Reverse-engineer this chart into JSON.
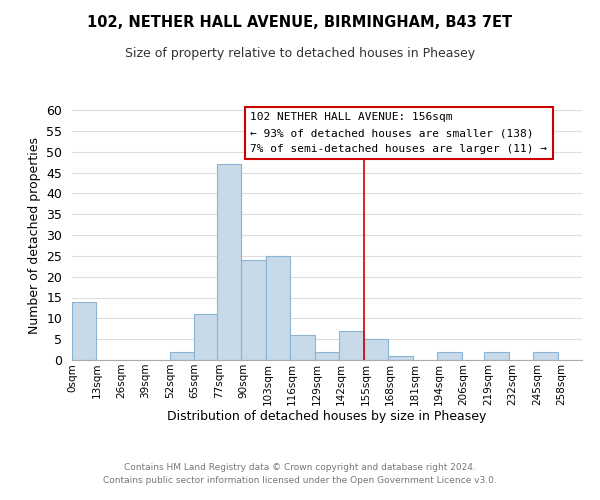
{
  "title": "102, NETHER HALL AVENUE, BIRMINGHAM, B43 7ET",
  "subtitle": "Size of property relative to detached houses in Pheasey",
  "xlabel": "Distribution of detached houses by size in Pheasey",
  "ylabel": "Number of detached properties",
  "bar_color": "#c8d9ea",
  "bar_edge_color": "#8ab4d4",
  "vline_x": 155,
  "vline_color": "#cc0000",
  "bins_left": [
    0,
    13,
    26,
    39,
    52,
    65,
    77,
    90,
    103,
    116,
    129,
    142,
    155,
    168,
    181,
    194,
    206,
    219,
    232,
    245
  ],
  "bin_width": 13,
  "counts": [
    14,
    0,
    0,
    0,
    2,
    11,
    47,
    24,
    25,
    6,
    2,
    7,
    5,
    1,
    0,
    2,
    0,
    2,
    0,
    2
  ],
  "tick_labels": [
    "0sqm",
    "13sqm",
    "26sqm",
    "39sqm",
    "52sqm",
    "65sqm",
    "77sqm",
    "90sqm",
    "103sqm",
    "116sqm",
    "129sqm",
    "142sqm",
    "155sqm",
    "168sqm",
    "181sqm",
    "194sqm",
    "206sqm",
    "219sqm",
    "232sqm",
    "245sqm",
    "258sqm"
  ],
  "ylim": [
    0,
    60
  ],
  "yticks": [
    0,
    5,
    10,
    15,
    20,
    25,
    30,
    35,
    40,
    45,
    50,
    55,
    60
  ],
  "annotation_title": "102 NETHER HALL AVENUE: 156sqm",
  "annotation_line1": "← 93% of detached houses are smaller (138)",
  "annotation_line2": "7% of semi-detached houses are larger (11) →",
  "annotation_box_color": "#ffffff",
  "annotation_box_edgecolor": "#cc0000",
  "footer1": "Contains HM Land Registry data © Crown copyright and database right 2024.",
  "footer2": "Contains public sector information licensed under the Open Government Licence v3.0.",
  "background_color": "#ffffff",
  "grid_color": "#dddddd"
}
